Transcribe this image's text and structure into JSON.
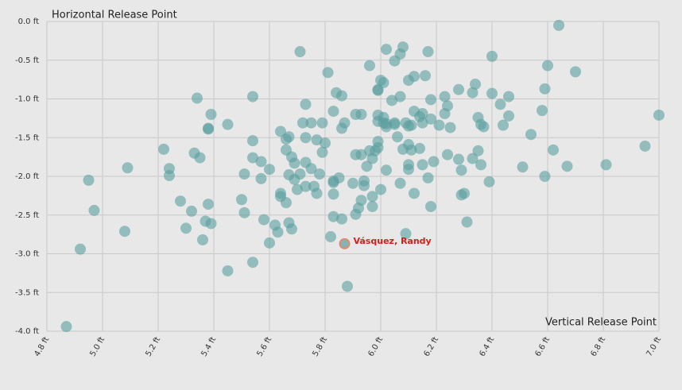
{
  "chart_data": {
    "type": "scatter",
    "x_label": "Vertical Release Point",
    "y_label": "Horizontal Release Point",
    "color": "#5a9e9e",
    "x": [
      4.87,
      4.92,
      4.95,
      4.97,
      5.08,
      5.09,
      5.22,
      5.24,
      5.24,
      5.28,
      5.3,
      5.32,
      5.33,
      5.34,
      5.35,
      5.36,
      5.37,
      5.38,
      5.38,
      5.38,
      5.39,
      5.39,
      5.45,
      5.45,
      5.5,
      5.51,
      5.51,
      5.54,
      5.54,
      5.54,
      5.54,
      5.57,
      5.57,
      5.58,
      5.6,
      5.6,
      5.62,
      5.63,
      5.64,
      5.64,
      5.64,
      5.66,
      5.66,
      5.66,
      5.67,
      5.67,
      5.67,
      5.68,
      5.68,
      5.69,
      5.69,
      5.7,
      5.71,
      5.71,
      5.72,
      5.73,
      5.73,
      5.73,
      5.73,
      5.75,
      5.75,
      5.76,
      5.77,
      5.77,
      5.78,
      5.79,
      5.79,
      5.8,
      5.81,
      5.82,
      5.83,
      5.83,
      5.83,
      5.83,
      5.83,
      5.84,
      5.85,
      5.86,
      5.86,
      5.86,
      5.87,
      5.88,
      5.9,
      5.91,
      5.91,
      5.91,
      5.92,
      5.93,
      5.93,
      5.93,
      5.94,
      5.94,
      5.95,
      5.96,
      5.96,
      5.97,
      5.97,
      5.97,
      5.98,
      5.99,
      5.99,
      5.99,
      5.99,
      5.99,
      5.99,
      6.0,
      6.0,
      6.01,
      6.01,
      6.01,
      6.02,
      6.02,
      6.02,
      6.02,
      6.04,
      6.05,
      6.05,
      6.05,
      6.06,
      6.07,
      6.07,
      6.07,
      6.08,
      6.08,
      6.09,
      6.09,
      6.1,
      6.1,
      6.1,
      6.1,
      6.1,
      6.11,
      6.11,
      6.12,
      6.12,
      6.12,
      6.14,
      6.14,
      6.15,
      6.15,
      6.15,
      6.16,
      6.17,
      6.17,
      6.18,
      6.18,
      6.18,
      6.19,
      6.21,
      6.23,
      6.23,
      6.24,
      6.24,
      6.25,
      6.28,
      6.28,
      6.29,
      6.29,
      6.3,
      6.31,
      6.33,
      6.33,
      6.34,
      6.35,
      6.35,
      6.36,
      6.36,
      6.37,
      6.39,
      6.4,
      6.4,
      6.43,
      6.44,
      6.46,
      6.46,
      6.51,
      6.54,
      6.58,
      6.59,
      6.59,
      6.6,
      6.62,
      6.64,
      6.67,
      6.7,
      6.81,
      6.95,
      7.0
    ],
    "values": [
      -3.94,
      -2.94,
      -2.05,
      -2.44,
      -2.71,
      -1.89,
      -1.65,
      -1.9,
      -1.99,
      -2.32,
      -2.67,
      -2.45,
      -1.7,
      -0.99,
      -1.76,
      -2.82,
      -2.58,
      -1.39,
      -2.36,
      -1.38,
      -1.2,
      -2.61,
      -1.33,
      -3.22,
      -2.3,
      -2.47,
      -1.97,
      -0.97,
      -1.54,
      -3.11,
      -1.76,
      -2.03,
      -1.81,
      -2.56,
      -1.91,
      -2.86,
      -2.63,
      -2.72,
      -2.26,
      -1.42,
      -2.22,
      -1.66,
      -1.52,
      -2.34,
      -1.49,
      -1.98,
      -2.6,
      -1.75,
      -2.68,
      -1.83,
      -2.04,
      -2.17,
      -0.39,
      -1.97,
      -1.31,
      -1.07,
      -1.5,
      -1.82,
      -2.13,
      -1.31,
      -1.9,
      -2.13,
      -1.53,
      -2.22,
      -1.97,
      -1.31,
      -1.69,
      -1.57,
      -0.66,
      -2.78,
      -1.16,
      -2.08,
      -2.52,
      -2.23,
      -2.06,
      -0.92,
      -2.02,
      -1.38,
      -0.96,
      -2.55,
      -1.31,
      -3.42,
      -2.09,
      -2.49,
      -1.2,
      -1.72,
      -2.41,
      -1.72,
      -1.2,
      -2.31,
      -2.06,
      -2.12,
      -1.87,
      -1.67,
      -0.57,
      -2.26,
      -1.77,
      -2.39,
      -1.67,
      -0.89,
      -0.88,
      -1.63,
      -1.29,
      -1.21,
      -1.55,
      -2.17,
      -0.76,
      -1.31,
      -1.24,
      -0.79,
      -0.36,
      -1.32,
      -1.92,
      -1.36,
      -1.02,
      -1.31,
      -0.51,
      -1.33,
      -1.49,
      -2.09,
      -0.97,
      -0.42,
      -0.33,
      -1.65,
      -1.31,
      -2.74,
      -1.35,
      -0.76,
      -1.59,
      -1.85,
      -1.91,
      -1.66,
      -1.34,
      -2.22,
      -0.71,
      -1.16,
      -1.64,
      -1.23,
      -1.31,
      -1.19,
      -1.85,
      -0.7,
      -0.39,
      -2.02,
      -1.26,
      -1.01,
      -2.39,
      -1.81,
      -1.34,
      -1.19,
      -0.97,
      -1.09,
      -1.72,
      -1.37,
      -1.78,
      -0.88,
      -1.92,
      -2.24,
      -2.22,
      -2.59,
      -1.77,
      -0.92,
      -0.81,
      -1.24,
      -1.67,
      -1.33,
      -1.85,
      -1.36,
      -2.07,
      -0.45,
      -0.93,
      -1.07,
      -1.34,
      -0.97,
      -1.22,
      -1.88,
      -1.46,
      -1.15,
      -0.87,
      -2.0,
      -0.57,
      -1.66,
      -0.05,
      -1.87,
      -0.65,
      -1.85,
      -1.61,
      -1.21
    ],
    "highlight": {
      "label": "Vásquez, Randy",
      "x": 5.87,
      "y": -2.87,
      "color": "#e38a70",
      "label_color": "#d0201c"
    },
    "xlim": [
      4.8,
      7.0
    ],
    "ylim": [
      -4.0,
      0.0
    ],
    "xticks": [
      {
        "value": 4.8,
        "label": "4.8 ft"
      },
      {
        "value": 5.0,
        "label": "5.0 ft"
      },
      {
        "value": 5.2,
        "label": "5.2 ft"
      },
      {
        "value": 5.4,
        "label": "5.4 ft"
      },
      {
        "value": 5.6,
        "label": "5.6 ft"
      },
      {
        "value": 5.8,
        "label": "5.8 ft"
      },
      {
        "value": 6.0,
        "label": "6.0 ft"
      },
      {
        "value": 6.2,
        "label": "6.2 ft"
      },
      {
        "value": 6.4,
        "label": "6.4 ft"
      },
      {
        "value": 6.6,
        "label": "6.6 ft"
      },
      {
        "value": 6.8,
        "label": "6.8 ft"
      },
      {
        "value": 7.0,
        "label": "7.0 ft"
      }
    ],
    "yticks": [
      {
        "value": 0.0,
        "label": "0.0 ft"
      },
      {
        "value": -0.5,
        "label": "-0.5 ft"
      },
      {
        "value": -1.0,
        "label": "-1.0 ft"
      },
      {
        "value": -1.5,
        "label": "-1.5 ft"
      },
      {
        "value": -2.0,
        "label": "-2.0 ft"
      },
      {
        "value": -2.5,
        "label": "-2.5 ft"
      },
      {
        "value": -3.0,
        "label": "-3.0 ft"
      },
      {
        "value": -3.5,
        "label": "-3.5 ft"
      },
      {
        "value": -4.0,
        "label": "-4.0 ft"
      }
    ],
    "grid": true
  }
}
